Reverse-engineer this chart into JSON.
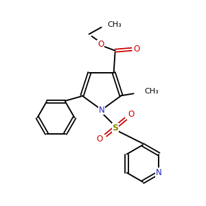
{
  "background_color": "#ffffff",
  "atom_colors": {
    "C": "#000000",
    "N": "#2222bb",
    "O": "#cc0000",
    "S": "#888800"
  }
}
